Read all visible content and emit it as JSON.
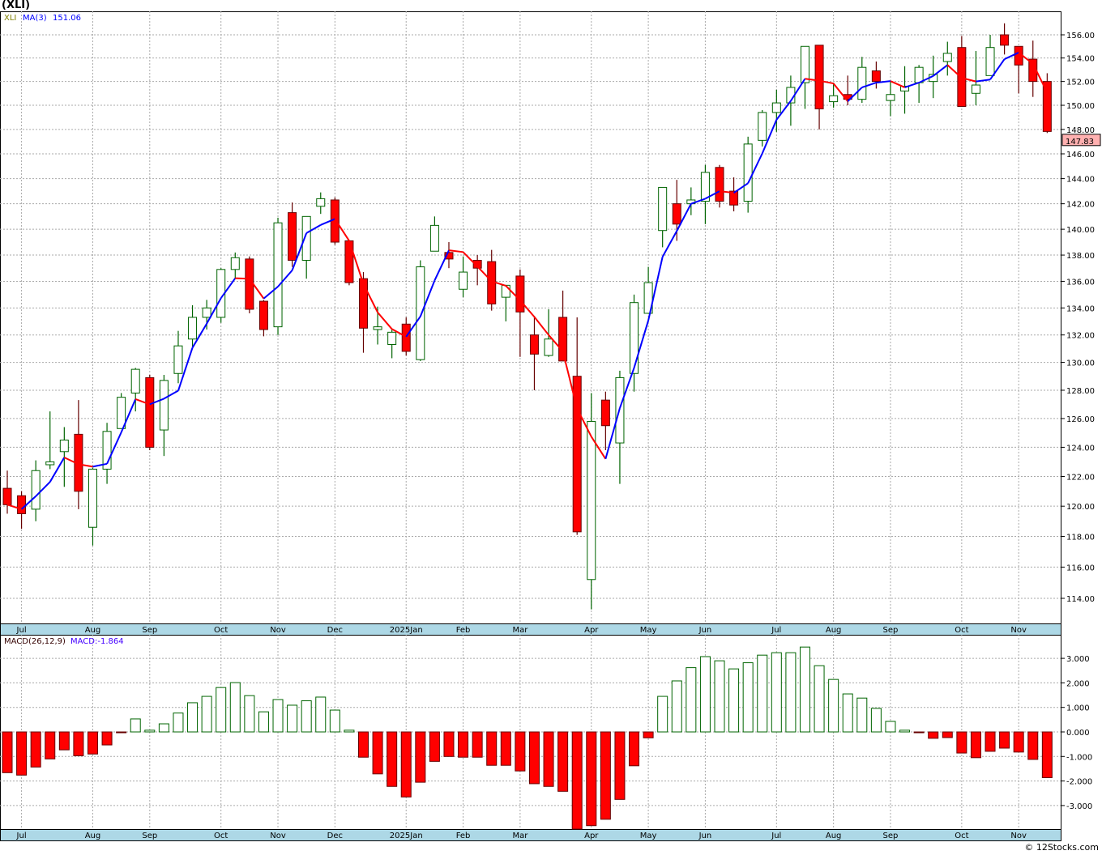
{
  "title": "(XLI)",
  "copyright": "© 12Stocks.com",
  "colors": {
    "up": "#006400",
    "down": "#ff0000",
    "down_border": "#660000",
    "ma_up": "#0000ff",
    "ma_down": "#ff0000",
    "axis_strip": "#add8e6",
    "last_badge": "#ffb0b0"
  },
  "chart_data": [
    {
      "type": "candlestick",
      "title": "(XLI)",
      "legend": {
        "symbol": "XLI",
        "ma_label": "MA(3)",
        "ma_value": "151.06"
      },
      "last_price": "147.83",
      "y_ticks": [
        "114.00",
        "116.00",
        "118.00",
        "120.00",
        "122.00",
        "124.00",
        "126.00",
        "128.00",
        "130.00",
        "132.00",
        "134.00",
        "136.00",
        "138.00",
        "140.00",
        "142.00",
        "144.00",
        "146.00",
        "148.00",
        "150.00",
        "152.00",
        "154.00",
        "156.00"
      ],
      "ylim": [
        112.5,
        158
      ],
      "y_scale": "log",
      "x_labels": [
        {
          "label": "Jul",
          "index": 1
        },
        {
          "label": "Aug",
          "index": 6
        },
        {
          "label": "Sep",
          "index": 10
        },
        {
          "label": "Oct",
          "index": 15
        },
        {
          "label": "Nov",
          "index": 19
        },
        {
          "label": "Dec",
          "index": 23
        },
        {
          "label": "2025Jan",
          "index": 28
        },
        {
          "label": "Feb",
          "index": 32
        },
        {
          "label": "Mar",
          "index": 36
        },
        {
          "label": "Apr",
          "index": 41
        },
        {
          "label": "May",
          "index": 45
        },
        {
          "label": "Jun",
          "index": 49
        },
        {
          "label": "Jul",
          "index": 54
        },
        {
          "label": "Aug",
          "index": 58
        },
        {
          "label": "Sep",
          "index": 62
        },
        {
          "label": "Oct",
          "index": 67
        },
        {
          "label": "Nov",
          "index": 71
        }
      ],
      "ohlc": [
        [
          121.2,
          122.4,
          119.5,
          120.1
        ],
        [
          120.7,
          121.0,
          118.5,
          119.5
        ],
        [
          119.8,
          123.1,
          119.0,
          122.4
        ],
        [
          122.8,
          126.5,
          122.5,
          123.0
        ],
        [
          123.7,
          125.4,
          121.3,
          124.5
        ],
        [
          124.9,
          127.3,
          119.8,
          121.0
        ],
        [
          118.6,
          122.6,
          117.4,
          122.5
        ],
        [
          122.5,
          125.7,
          121.5,
          125.1
        ],
        [
          125.3,
          127.8,
          125.3,
          127.5
        ],
        [
          127.8,
          129.6,
          126.5,
          129.5
        ],
        [
          128.9,
          129.1,
          123.8,
          124.0
        ],
        [
          125.2,
          129.1,
          123.4,
          128.7
        ],
        [
          129.2,
          132.3,
          128.5,
          131.2
        ],
        [
          131.7,
          134.2,
          131.1,
          133.3
        ],
        [
          133.3,
          134.6,
          132.4,
          134.0
        ],
        [
          133.3,
          137.0,
          132.9,
          136.9
        ],
        [
          136.9,
          138.2,
          136.2,
          137.8
        ],
        [
          137.7,
          137.9,
          133.6,
          133.9
        ],
        [
          134.5,
          134.6,
          131.9,
          132.4
        ],
        [
          132.6,
          140.9,
          132.0,
          140.5
        ],
        [
          141.3,
          142.1,
          137.1,
          137.6
        ],
        [
          137.6,
          141.0,
          136.2,
          141.0
        ],
        [
          141.8,
          142.9,
          141.2,
          142.4
        ],
        [
          142.3,
          142.5,
          138.8,
          139.0
        ],
        [
          139.1,
          139.1,
          135.7,
          135.9
        ],
        [
          136.2,
          136.7,
          130.7,
          132.5
        ],
        [
          132.4,
          134.1,
          131.3,
          132.6
        ],
        [
          131.3,
          132.4,
          130.3,
          132.2
        ],
        [
          132.8,
          133.3,
          130.5,
          130.8
        ],
        [
          130.2,
          137.6,
          130.1,
          137.1
        ],
        [
          138.3,
          141.0,
          138.3,
          140.3
        ],
        [
          138.2,
          139.0,
          137.0,
          137.7
        ],
        [
          135.4,
          137.9,
          134.8,
          136.7
        ],
        [
          137.6,
          138.0,
          135.7,
          137.0
        ],
        [
          137.5,
          138.4,
          133.8,
          134.3
        ],
        [
          134.8,
          135.7,
          133.0,
          135.7
        ],
        [
          136.4,
          136.9,
          130.4,
          133.7
        ],
        [
          132.0,
          133.4,
          128.0,
          130.6
        ],
        [
          130.5,
          133.9,
          130.4,
          131.7
        ],
        [
          133.3,
          135.3,
          130.1,
          130.1
        ],
        [
          129.0,
          133.3,
          118.1,
          118.3
        ],
        [
          115.2,
          127.8,
          113.3,
          125.8
        ],
        [
          127.3,
          127.9,
          123.8,
          125.5
        ],
        [
          124.3,
          129.4,
          121.5,
          128.9
        ],
        [
          129.2,
          135.0,
          127.9,
          134.4
        ],
        [
          133.6,
          137.1,
          133.6,
          135.9
        ],
        [
          139.9,
          143.3,
          138.6,
          143.3
        ],
        [
          142.0,
          143.9,
          139.1,
          140.4
        ],
        [
          142.0,
          143.3,
          141.1,
          142.3
        ],
        [
          142.2,
          145.1,
          140.4,
          144.5
        ],
        [
          144.9,
          145.1,
          141.7,
          142.2
        ],
        [
          143.0,
          144.1,
          141.4,
          141.9
        ],
        [
          142.2,
          147.4,
          141.3,
          146.8
        ],
        [
          147.1,
          149.6,
          146.6,
          149.4
        ],
        [
          149.4,
          151.3,
          147.8,
          150.2
        ],
        [
          150.2,
          152.5,
          148.3,
          151.5
        ],
        [
          151.9,
          155.0,
          149.7,
          155.0
        ],
        [
          155.1,
          155.1,
          148.0,
          149.7
        ],
        [
          150.3,
          151.9,
          149.8,
          150.8
        ],
        [
          150.9,
          152.5,
          150.0,
          150.5
        ],
        [
          150.5,
          154.1,
          150.2,
          153.2
        ],
        [
          152.9,
          153.7,
          151.4,
          152.0
        ],
        [
          150.4,
          152.0,
          149.1,
          150.9
        ],
        [
          151.2,
          153.3,
          149.3,
          151.6
        ],
        [
          151.9,
          153.4,
          150.2,
          153.2
        ],
        [
          152.0,
          154.2,
          150.6,
          152.6
        ],
        [
          153.7,
          155.4,
          152.5,
          154.4
        ],
        [
          154.9,
          155.9,
          149.9,
          149.9
        ],
        [
          151.0,
          154.6,
          150.0,
          151.7
        ],
        [
          152.5,
          156.0,
          152.5,
          154.9
        ],
        [
          156.0,
          157.0,
          154.3,
          155.1
        ],
        [
          155.0,
          155.0,
          151.0,
          153.4
        ],
        [
          153.9,
          155.5,
          150.7,
          152.0
        ],
        [
          152.0,
          152.7,
          147.7,
          147.83
        ]
      ]
    },
    {
      "type": "bar",
      "title": "MACD(26,12,9)",
      "legend": {
        "label": "MACD(26,12,9)",
        "value_label": "MACD:",
        "value": "-1.864"
      },
      "y_ticks": [
        "3.000",
        "2.000",
        "1.000",
        "0.000",
        "-1.000",
        "-2.000",
        "-3.000"
      ],
      "ylim": [
        -4.0,
        3.8
      ],
      "values": [
        -1.66,
        -1.76,
        -1.43,
        -1.1,
        -0.73,
        -0.97,
        -0.9,
        -0.53,
        -0.03,
        0.53,
        0.07,
        0.33,
        0.77,
        1.19,
        1.45,
        1.81,
        2.01,
        1.48,
        0.82,
        1.32,
        1.09,
        1.27,
        1.42,
        0.89,
        0.07,
        -1.03,
        -1.71,
        -2.22,
        -2.65,
        -2.05,
        -1.2,
        -1.0,
        -1.03,
        -1.03,
        -1.36,
        -1.36,
        -1.59,
        -2.11,
        -2.22,
        -2.42,
        -4.1,
        -3.82,
        -3.56,
        -2.75,
        -1.38,
        -0.24,
        1.45,
        2.08,
        2.62,
        3.07,
        2.9,
        2.57,
        2.82,
        3.13,
        3.23,
        3.23,
        3.46,
        2.7,
        2.14,
        1.55,
        1.38,
        0.96,
        0.43,
        0.07,
        -0.03,
        -0.26,
        -0.23,
        -0.86,
        -1.05,
        -0.79,
        -0.66,
        -0.82,
        -1.12,
        -1.864
      ]
    }
  ]
}
